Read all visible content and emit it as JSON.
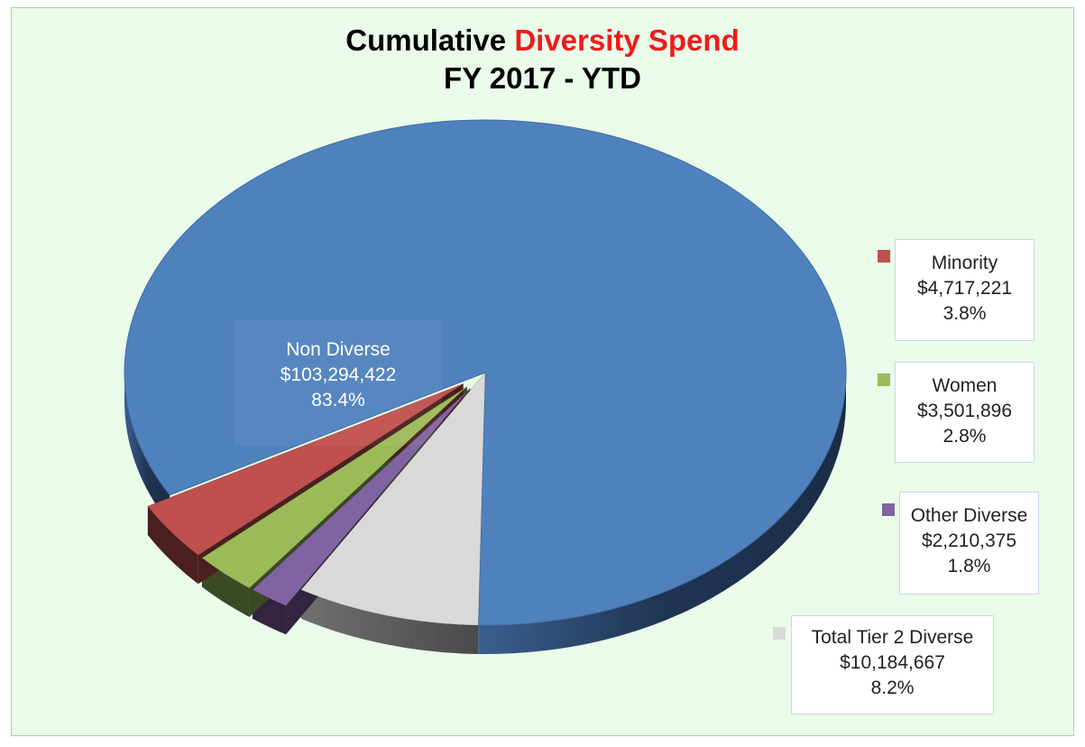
{
  "chart_data": {
    "type": "pie",
    "title_part1": "Cumulative ",
    "title_part2": "Diversity Spend",
    "subtitle": "FY 2017 - YTD",
    "slices": [
      {
        "name": "Non Diverse",
        "amount": "$103,294,422",
        "percent_label": "83.4%",
        "value": 103294422,
        "color": "#4f81bd"
      },
      {
        "name": "Minority",
        "amount": "$4,717,221",
        "percent_label": "3.8%",
        "value": 4717221,
        "color": "#c0504d"
      },
      {
        "name": "Women",
        "amount": "$3,501,896",
        "percent_label": "2.8%",
        "value": 3501896,
        "color": "#9bbb59"
      },
      {
        "name": "Other Diverse",
        "amount": "$2,210,375",
        "percent_label": "1.8%",
        "value": 2210375,
        "color": "#8064a2"
      },
      {
        "name": "Total Tier 2 Diverse",
        "amount": "$10,184,667",
        "percent_label": "8.2%",
        "value": 10184667,
        "color": "#d9d9d9"
      }
    ],
    "colors": {
      "title_highlight": "#ee1c1c",
      "background": "#eafbea"
    }
  }
}
